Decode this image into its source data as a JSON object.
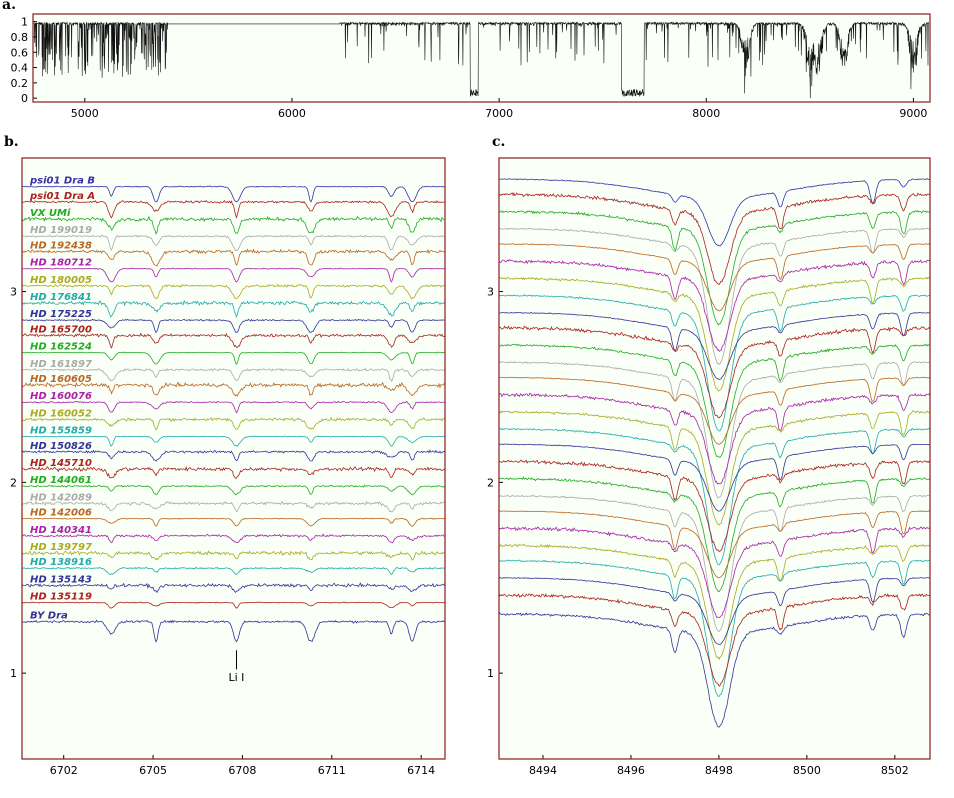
{
  "chart_data": [
    {
      "panel": "a.",
      "type": "line",
      "x_ticks": [
        5000,
        6000,
        7000,
        8000,
        9000
      ],
      "y_ticks": [
        0,
        0.2,
        0.4,
        0.6,
        0.8,
        1
      ],
      "xlim": [
        4750,
        9080
      ],
      "ylim": [
        -0.05,
        1.1
      ],
      "gap": [
        5400,
        6230
      ],
      "telluric_bands": [
        [
          6860,
          6900
        ],
        [
          7590,
          7700
        ]
      ],
      "broad_features": [
        8190,
        8500,
        8540,
        8665,
        9000
      ]
    },
    {
      "panel": "b.",
      "type": "line",
      "x_ticks": [
        6702,
        6705,
        6708,
        6711,
        6714
      ],
      "y_ticks": [
        1,
        2,
        3
      ],
      "xlim": [
        6700.6,
        6714.8
      ],
      "ylim": [
        0.55,
        3.7
      ],
      "annotation": {
        "text": "Li I",
        "x": 6707.8
      },
      "series": [
        {
          "name": "psi01 Dra B",
          "color": "#3333aa",
          "offset": 3.55
        },
        {
          "name": "psi01 Dra A",
          "color": "#aa2222",
          "offset": 3.47
        },
        {
          "name": "VX UMi",
          "color": "#22aa22",
          "offset": 3.38
        },
        {
          "name": "HD 199019",
          "color": "#aaaaaa",
          "offset": 3.29
        },
        {
          "name": "HD 192438",
          "color": "#bb6622",
          "offset": 3.21
        },
        {
          "name": "HD 180712",
          "color": "#aa22aa",
          "offset": 3.12
        },
        {
          "name": "HD 180005",
          "color": "#aaaa22",
          "offset": 3.03
        },
        {
          "name": "HD 176841",
          "color": "#22aaaa",
          "offset": 2.94
        },
        {
          "name": "HD 175225",
          "color": "#333399",
          "offset": 2.85
        },
        {
          "name": "HD 165700",
          "color": "#aa2222",
          "offset": 2.77
        },
        {
          "name": "HD 162524",
          "color": "#22aa22",
          "offset": 2.68
        },
        {
          "name": "HD 161897",
          "color": "#aaaaaa",
          "offset": 2.59
        },
        {
          "name": "HD 160605",
          "color": "#bb6622",
          "offset": 2.51
        },
        {
          "name": "HD 160076",
          "color": "#aa22aa",
          "offset": 2.42
        },
        {
          "name": "HD 160052",
          "color": "#aaaa22",
          "offset": 2.33
        },
        {
          "name": "HD 155859",
          "color": "#22aaaa",
          "offset": 2.24
        },
        {
          "name": "HD 150826",
          "color": "#333399",
          "offset": 2.16
        },
        {
          "name": "HD 145710",
          "color": "#aa2222",
          "offset": 2.07
        },
        {
          "name": "HD 144061",
          "color": "#22aa22",
          "offset": 1.98
        },
        {
          "name": "HD 142089",
          "color": "#aaaaaa",
          "offset": 1.89
        },
        {
          "name": "HD 142006",
          "color": "#bb6622",
          "offset": 1.81
        },
        {
          "name": "HD 140341",
          "color": "#aa22aa",
          "offset": 1.72
        },
        {
          "name": "HD 139797",
          "color": "#aaaa22",
          "offset": 1.63
        },
        {
          "name": "HD 138916",
          "color": "#22aaaa",
          "offset": 1.55
        },
        {
          "name": "HD 135143",
          "color": "#333399",
          "offset": 1.46
        },
        {
          "name": "HD 135119",
          "color": "#aa2222",
          "offset": 1.37
        },
        {
          "name": "BY Dra",
          "color": "#333399",
          "offset": 1.27
        }
      ],
      "lines": [
        6703.6,
        6705.1,
        6707.8,
        6710.3,
        6713.0,
        6713.7
      ]
    },
    {
      "panel": "c.",
      "type": "line",
      "x_ticks": [
        8494,
        8496,
        8498,
        8500,
        8502
      ],
      "y_ticks": [
        1,
        2,
        3
      ],
      "xlim": [
        8493.0,
        8502.8
      ],
      "ylim": [
        0.55,
        3.7
      ],
      "line_center": 8498.0,
      "lines": [
        8497.0,
        8499.4,
        8501.5,
        8502.2
      ]
    }
  ]
}
